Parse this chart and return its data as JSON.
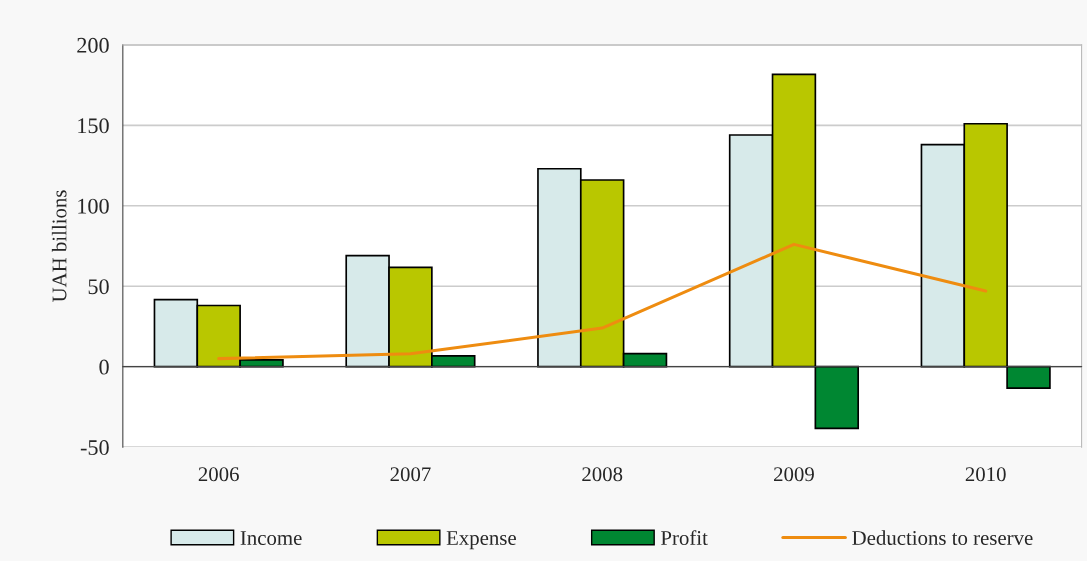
{
  "chart_data": {
    "type": "bar",
    "ylabel": "UAH billions",
    "categories": [
      "2006",
      "2007",
      "2008",
      "2009",
      "2010"
    ],
    "series": [
      {
        "name": "Income",
        "color": "#d7eaea",
        "values": [
          41.7,
          69,
          123,
          144,
          138
        ]
      },
      {
        "name": "Expense",
        "color": "#b9c700",
        "values": [
          38,
          61.7,
          116,
          181.7,
          151
        ]
      },
      {
        "name": "Profit",
        "color": "#008732",
        "values": [
          4.2,
          6.7,
          8.1,
          -38.3,
          -13.3
        ]
      },
      {
        "name": "Deductions to reserve",
        "type": "line",
        "color": "#ee8c10",
        "values": [
          5,
          8,
          24,
          76,
          47
        ]
      }
    ],
    "ylim": [
      -50,
      200
    ],
    "yticks": [
      -50,
      0,
      50,
      100,
      150,
      200
    ],
    "grid": "y",
    "legend": "bottom",
    "marker": "none",
    "line_style": "solid"
  }
}
